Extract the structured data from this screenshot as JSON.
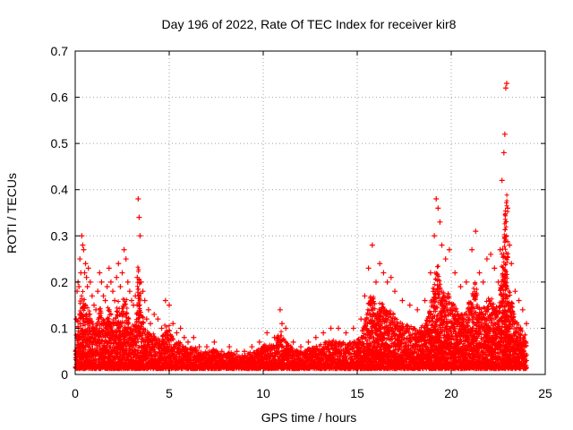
{
  "chart_data": {
    "type": "scatter",
    "title": "Day 196 of 2022, Rate Of TEC Index for receiver kir8",
    "xlabel": "GPS time / hours",
    "ylabel": "ROTI / TECUs",
    "xlim": [
      0,
      25
    ],
    "ylim": [
      0,
      0.7
    ],
    "xticks": [
      0,
      5,
      10,
      15,
      20,
      25
    ],
    "yticks": [
      0,
      0.1,
      0.2,
      0.3,
      0.4,
      0.5,
      0.6,
      0.7
    ],
    "grid": true,
    "marker": "+",
    "color": "#ff0000",
    "series": [
      {
        "x": [
          0.05,
          0.1,
          0.15,
          0.2,
          0.25,
          0.3,
          0.35,
          0.4,
          0.45,
          0.5,
          0.55,
          0.6,
          0.65,
          0.7,
          0.8,
          0.9,
          1.0,
          1.1,
          1.2,
          1.3,
          1.4,
          1.5,
          1.6,
          1.7,
          1.8,
          1.9,
          2.0,
          2.1,
          2.2,
          2.3,
          2.4,
          2.5,
          2.6,
          2.7,
          2.8,
          2.9,
          3.0,
          3.1,
          3.2,
          3.3,
          3.35,
          3.4,
          3.45,
          3.5,
          3.6,
          3.7,
          3.8,
          3.9,
          4.0,
          4.2,
          4.4,
          4.6,
          4.8,
          5.0,
          5.2,
          5.4,
          5.6,
          5.8,
          6.0,
          6.3,
          6.6,
          7.0,
          7.4,
          7.8,
          8.2,
          8.6,
          9.0,
          9.4,
          9.8,
          10.2,
          10.6,
          10.9,
          11.0,
          11.2,
          11.6,
          12.0,
          12.4,
          12.8,
          13.2,
          13.6,
          14.0,
          14.4,
          14.8,
          15.2,
          15.4,
          15.6,
          15.8,
          16.0,
          16.2,
          16.4,
          16.6,
          16.8,
          17.0,
          17.4,
          17.8,
          18.2,
          18.6,
          18.9,
          19.1,
          19.2,
          19.3,
          19.4,
          19.5,
          19.7,
          19.9,
          20.2,
          20.5,
          20.8,
          21.1,
          21.3,
          21.5,
          21.7,
          21.9,
          22.1,
          22.3,
          22.5,
          22.6,
          22.7,
          22.8,
          22.85,
          22.9,
          22.95,
          23.0,
          23.1,
          23.2,
          23.4,
          23.6,
          23.8,
          24.0
        ],
        "y": [
          0.12,
          0.18,
          0.2,
          0.19,
          0.25,
          0.22,
          0.3,
          0.28,
          0.27,
          0.22,
          0.24,
          0.21,
          0.19,
          0.23,
          0.2,
          0.17,
          0.15,
          0.14,
          0.18,
          0.22,
          0.2,
          0.17,
          0.16,
          0.19,
          0.23,
          0.2,
          0.18,
          0.16,
          0.21,
          0.24,
          0.19,
          0.22,
          0.27,
          0.25,
          0.2,
          0.18,
          0.16,
          0.15,
          0.17,
          0.21,
          0.38,
          0.34,
          0.3,
          0.2,
          0.18,
          0.16,
          0.12,
          0.14,
          0.11,
          0.13,
          0.12,
          0.1,
          0.16,
          0.15,
          0.11,
          0.09,
          0.1,
          0.08,
          0.07,
          0.08,
          0.06,
          0.06,
          0.07,
          0.05,
          0.06,
          0.05,
          0.05,
          0.06,
          0.07,
          0.09,
          0.08,
          0.14,
          0.11,
          0.1,
          0.07,
          0.06,
          0.07,
          0.08,
          0.09,
          0.1,
          0.1,
          0.09,
          0.1,
          0.12,
          0.17,
          0.23,
          0.28,
          0.2,
          0.24,
          0.22,
          0.2,
          0.21,
          0.18,
          0.16,
          0.15,
          0.14,
          0.16,
          0.22,
          0.3,
          0.38,
          0.36,
          0.33,
          0.28,
          0.25,
          0.27,
          0.22,
          0.19,
          0.2,
          0.27,
          0.31,
          0.22,
          0.2,
          0.25,
          0.26,
          0.23,
          0.2,
          0.27,
          0.42,
          0.48,
          0.52,
          0.62,
          0.63,
          0.36,
          0.28,
          0.24,
          0.18,
          0.16,
          0.14,
          0.11
        ]
      }
    ]
  }
}
